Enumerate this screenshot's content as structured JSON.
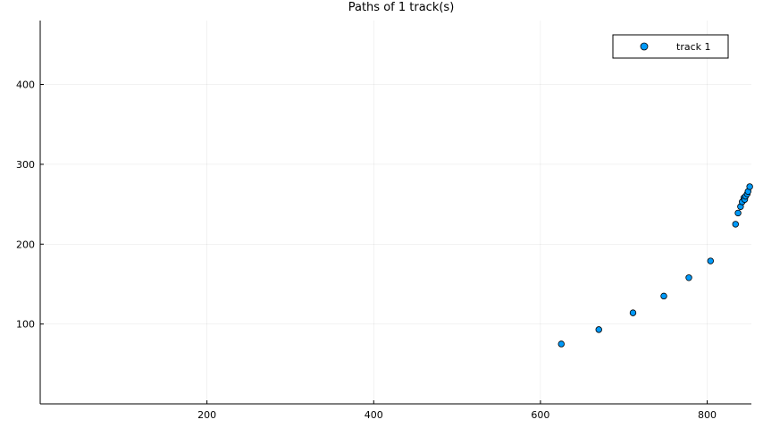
{
  "chart_data": {
    "type": "scatter",
    "title": "Paths of 1 track(s)",
    "xlabel": "",
    "ylabel": "",
    "xlim": [
      0,
      853
    ],
    "ylim": [
      0,
      480
    ],
    "xticks": [
      200,
      400,
      600,
      800
    ],
    "yticks": [
      100,
      200,
      300,
      400
    ],
    "grid": true,
    "legend_position": "top-right",
    "series": [
      {
        "name": "track 1",
        "color": "#009AFA",
        "points": [
          {
            "x": 625,
            "y": 75
          },
          {
            "x": 670,
            "y": 93
          },
          {
            "x": 711,
            "y": 114
          },
          {
            "x": 748,
            "y": 135
          },
          {
            "x": 778,
            "y": 158
          },
          {
            "x": 804,
            "y": 179
          },
          {
            "x": 834,
            "y": 225
          },
          {
            "x": 837,
            "y": 239
          },
          {
            "x": 840,
            "y": 247
          },
          {
            "x": 842,
            "y": 253
          },
          {
            "x": 844,
            "y": 258
          },
          {
            "x": 845,
            "y": 256
          },
          {
            "x": 846,
            "y": 260
          },
          {
            "x": 848,
            "y": 263
          },
          {
            "x": 849,
            "y": 266
          },
          {
            "x": 851,
            "y": 272
          }
        ]
      }
    ]
  }
}
